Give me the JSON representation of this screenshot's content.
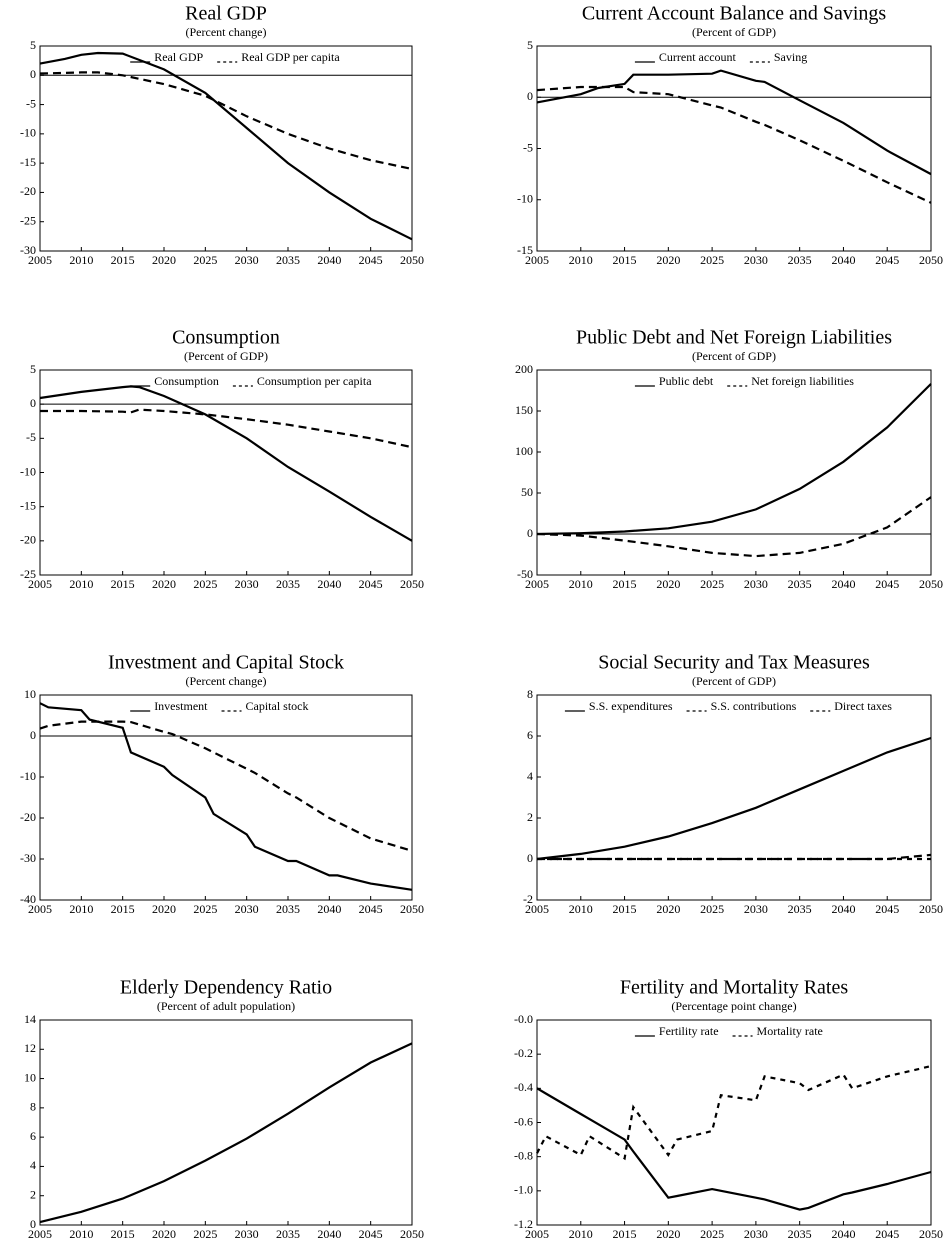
{
  "chart_data": [
    {
      "type": "line",
      "title": "Real GDP",
      "subtitle": "(Percent change)",
      "x": [
        2005,
        2008,
        2010,
        2012,
        2015,
        2020,
        2025,
        2030,
        2035,
        2040,
        2045,
        2050
      ],
      "series": [
        {
          "name": "Real GDP",
          "color": "#000000",
          "dash": "solid",
          "values": [
            2,
            2.8,
            3.5,
            3.8,
            3.7,
            1,
            -3,
            -9,
            -15,
            -20,
            -24.5,
            -28
          ]
        },
        {
          "name": "Real GDP per capita",
          "color": "#000000",
          "dash": "dashed",
          "values": [
            0.3,
            0.4,
            0.5,
            0.5,
            0,
            -1.5,
            -3.5,
            -7,
            -10,
            -12.5,
            -14.5,
            -16
          ]
        }
      ],
      "xlim": [
        2005,
        2050
      ],
      "xticks": [
        2005,
        2010,
        2015,
        2020,
        2025,
        2030,
        2035,
        2040,
        2045,
        2050
      ],
      "ylim": [
        -30,
        5
      ],
      "yticks": [
        -30,
        -25,
        -20,
        -15,
        -10,
        -5,
        0,
        5
      ],
      "zero_line": true,
      "legend": "top"
    },
    {
      "type": "line",
      "title": "Current Account Balance and Savings",
      "subtitle": "(Percent of GDP)",
      "x": [
        2005,
        2010,
        2012,
        2015,
        2016,
        2020,
        2025,
        2026,
        2030,
        2031,
        2035,
        2040,
        2045,
        2050
      ],
      "series": [
        {
          "name": "Current account",
          "color": "#000000",
          "dash": "solid",
          "values": [
            -0.5,
            0.3,
            0.9,
            1.3,
            2.2,
            2.2,
            2.3,
            2.6,
            1.6,
            1.5,
            -0.3,
            -2.5,
            -5.2,
            -7.5
          ]
        },
        {
          "name": "Saving",
          "color": "#000000",
          "dash": "dashed",
          "values": [
            0.7,
            1,
            1,
            1,
            0.5,
            0.3,
            -0.8,
            -1,
            -2.4,
            -2.7,
            -4.2,
            -6.2,
            -8.3,
            -10.3
          ]
        }
      ],
      "xlim": [
        2005,
        2050
      ],
      "xticks": [
        2005,
        2010,
        2015,
        2020,
        2025,
        2030,
        2035,
        2040,
        2045,
        2050
      ],
      "ylim": [
        -15,
        5
      ],
      "yticks": [
        -15,
        -10,
        -5,
        0,
        5
      ],
      "zero_line": true,
      "legend": "top"
    },
    {
      "type": "line",
      "title": "Consumption",
      "subtitle": "(Percent of GDP)",
      "x": [
        2005,
        2010,
        2015,
        2016,
        2017,
        2020,
        2025,
        2030,
        2035,
        2040,
        2045,
        2050
      ],
      "series": [
        {
          "name": "Consumption",
          "color": "#000000",
          "dash": "solid",
          "values": [
            0.9,
            1.8,
            2.5,
            2.6,
            2.5,
            1.2,
            -1.5,
            -5,
            -9.2,
            -12.8,
            -16.5,
            -20
          ]
        },
        {
          "name": "Consumption per capita",
          "color": "#000000",
          "dash": "dashed",
          "values": [
            -1,
            -1,
            -1.1,
            -1.2,
            -0.8,
            -1,
            -1.5,
            -2.2,
            -3,
            -4,
            -5,
            -6.3
          ]
        }
      ],
      "xlim": [
        2005,
        2050
      ],
      "xticks": [
        2005,
        2010,
        2015,
        2020,
        2025,
        2030,
        2035,
        2040,
        2045,
        2050
      ],
      "ylim": [
        -25,
        5
      ],
      "yticks": [
        -25,
        -20,
        -15,
        -10,
        -5,
        0,
        5
      ],
      "zero_line": true,
      "legend": "top"
    },
    {
      "type": "line",
      "title": "Public Debt and Net Foreign Liabilities",
      "subtitle": "(Percent of GDP)",
      "x": [
        2005,
        2010,
        2015,
        2020,
        2025,
        2030,
        2035,
        2040,
        2045,
        2050
      ],
      "series": [
        {
          "name": "Public debt",
          "color": "#000000",
          "dash": "solid",
          "values": [
            0,
            1,
            3,
            7,
            15,
            30,
            55,
            88,
            130,
            183
          ]
        },
        {
          "name": "Net foreign liabilities",
          "color": "#000000",
          "dash": "dashed",
          "values": [
            0,
            -2,
            -8,
            -15,
            -23,
            -27,
            -23,
            -12,
            8,
            45
          ]
        }
      ],
      "xlim": [
        2005,
        2050
      ],
      "xticks": [
        2005,
        2010,
        2015,
        2020,
        2025,
        2030,
        2035,
        2040,
        2045,
        2050
      ],
      "ylim": [
        -50,
        200
      ],
      "yticks": [
        -50,
        0,
        50,
        100,
        150,
        200
      ],
      "zero_line": true,
      "legend": "top"
    },
    {
      "type": "line",
      "title": "Investment and Capital Stock",
      "subtitle": "(Percent change)",
      "x": [
        2005,
        2006,
        2010,
        2011,
        2015,
        2016,
        2020,
        2021,
        2025,
        2026,
        2030,
        2031,
        2035,
        2036,
        2040,
        2041,
        2045,
        2050
      ],
      "series": [
        {
          "name": "Investment",
          "color": "#000000",
          "dash": "solid",
          "values": [
            8,
            7,
            6.3,
            4,
            2,
            -4,
            -7.5,
            -9.5,
            -15,
            -19,
            -24,
            -27,
            -30.5,
            -30.5,
            -34,
            -34,
            -36,
            -37.5
          ]
        },
        {
          "name": "Capital stock",
          "color": "#000000",
          "dash": "dashed",
          "values": [
            1.8,
            2.5,
            3.5,
            3.5,
            3.5,
            3.4,
            1,
            0.5,
            -3,
            -4,
            -8,
            -9,
            -14,
            -15,
            -20,
            -21,
            -25,
            -28
          ]
        }
      ],
      "xlim": [
        2005,
        2050
      ],
      "xticks": [
        2005,
        2010,
        2015,
        2020,
        2025,
        2030,
        2035,
        2040,
        2045,
        2050
      ],
      "ylim": [
        -40,
        10
      ],
      "yticks": [
        -40,
        -30,
        -20,
        -10,
        0,
        10
      ],
      "zero_line": true,
      "legend": "top"
    },
    {
      "type": "line",
      "title": "Social Security and Tax Measures",
      "subtitle": "(Percent of GDP)",
      "x": [
        2005,
        2010,
        2015,
        2020,
        2025,
        2030,
        2035,
        2040,
        2045,
        2050
      ],
      "series": [
        {
          "name": "S.S. expenditures",
          "color": "#000000",
          "dash": "solid",
          "values": [
            0,
            0.25,
            0.6,
            1.1,
            1.75,
            2.5,
            3.4,
            4.3,
            5.2,
            5.9
          ]
        },
        {
          "name": "S.S. contributions",
          "color": "#000000",
          "dash": "dashed-short",
          "values": [
            0,
            0,
            0,
            0,
            0,
            0,
            0,
            0,
            0,
            0
          ]
        },
        {
          "name": "Direct taxes",
          "color": "#000000",
          "dash": "dashed",
          "values": [
            0,
            0,
            0,
            0,
            0,
            0,
            0,
            0,
            0,
            0.2
          ]
        }
      ],
      "xlim": [
        2005,
        2050
      ],
      "xticks": [
        2005,
        2010,
        2015,
        2020,
        2025,
        2030,
        2035,
        2040,
        2045,
        2050
      ],
      "ylim": [
        -2,
        8
      ],
      "yticks": [
        -2,
        0,
        2,
        4,
        6,
        8
      ],
      "zero_line": false,
      "legend": "top"
    },
    {
      "type": "line",
      "title": "Elderly Dependency Ratio",
      "subtitle": "(Percent of adult population)",
      "x": [
        2005,
        2010,
        2015,
        2020,
        2025,
        2030,
        2035,
        2040,
        2045,
        2050
      ],
      "values": [
        0.2,
        0.9,
        1.8,
        3,
        4.4,
        5.9,
        7.6,
        9.4,
        11.1,
        12.4
      ],
      "color": "#000000",
      "xlim": [
        2005,
        2050
      ],
      "xticks": [
        2005,
        2010,
        2015,
        2020,
        2025,
        2030,
        2035,
        2040,
        2045,
        2050
      ],
      "ylim": [
        0,
        14
      ],
      "yticks": [
        0,
        2,
        4,
        6,
        8,
        10,
        12,
        14
      ],
      "zero_line": false
    },
    {
      "type": "line",
      "title": "Fertility and Mortality Rates",
      "subtitle": "(Percentage point change)",
      "x": [
        2005,
        2006,
        2010,
        2011,
        2015,
        2016,
        2020,
        2021,
        2025,
        2026,
        2030,
        2031,
        2035,
        2036,
        2040,
        2041,
        2045,
        2050
      ],
      "series": [
        {
          "name": "Fertility rate",
          "color": "#000000",
          "dash": "solid",
          "values": [
            -0.4,
            -0.43,
            -0.55,
            -0.58,
            -0.7,
            -0.77,
            -1.04,
            -1.03,
            -0.99,
            -1.0,
            -1.04,
            -1.05,
            -1.11,
            -1.1,
            -1.02,
            -1.01,
            -0.96,
            -0.89
          ]
        },
        {
          "name": "Mortality rate",
          "color": "#000000",
          "dash": "dashed-short",
          "values": [
            -0.78,
            -0.68,
            -0.79,
            -0.68,
            -0.81,
            -0.51,
            -0.79,
            -0.7,
            -0.65,
            -0.44,
            -0.47,
            -0.33,
            -0.37,
            -0.41,
            -0.32,
            -0.4,
            -0.33,
            -0.27
          ]
        }
      ],
      "xlim": [
        2005,
        2050
      ],
      "xticks": [
        2005,
        2010,
        2015,
        2020,
        2025,
        2030,
        2035,
        2040,
        2045,
        2050
      ],
      "ylim": [
        -1.2,
        0
      ],
      "yticks": [
        -1.2,
        {
          "value": -1,
          "label": "-1.0"
        },
        -0.8,
        -0.6,
        -0.4,
        -0.2,
        {
          "value": 0,
          "label": "-0.0"
        }
      ],
      "zero_line": false,
      "legend": "top"
    }
  ]
}
